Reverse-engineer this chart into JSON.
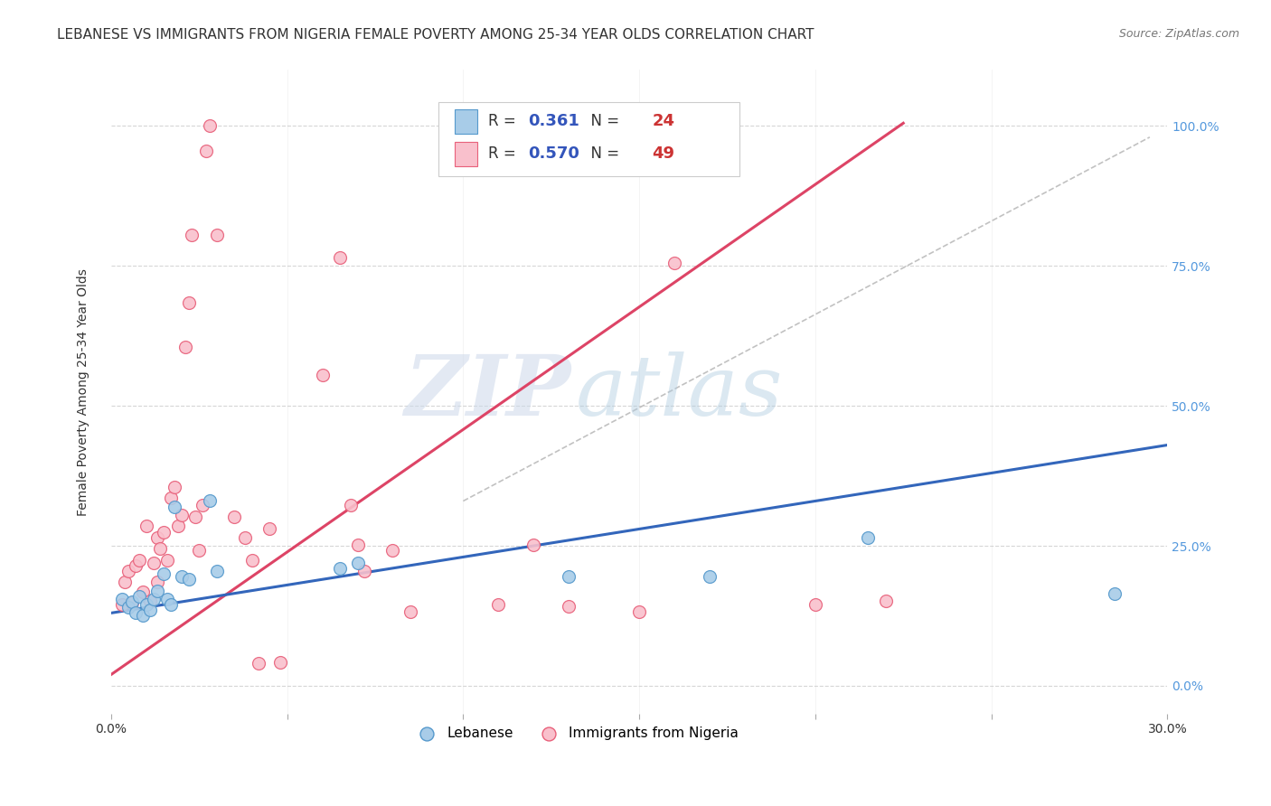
{
  "title": "LEBANESE VS IMMIGRANTS FROM NIGERIA FEMALE POVERTY AMONG 25-34 YEAR OLDS CORRELATION CHART",
  "source": "Source: ZipAtlas.com",
  "ylabel": "Female Poverty Among 25-34 Year Olds",
  "xlim": [
    0.0,
    0.3
  ],
  "ylim": [
    -0.05,
    1.1
  ],
  "xticks": [
    0.0,
    0.05,
    0.1,
    0.15,
    0.2,
    0.25,
    0.3
  ],
  "yticks": [
    0.0,
    0.25,
    0.5,
    0.75,
    1.0
  ],
  "ytick_labels": [
    "0.0%",
    "25.0%",
    "50.0%",
    "75.0%",
    "100.0%"
  ],
  "xtick_labels": [
    "0.0%",
    "",
    "",
    "",
    "",
    "",
    "30.0%"
  ],
  "watermark_zip": "ZIP",
  "watermark_atlas": "atlas",
  "legend_r_blue": "0.361",
  "legend_n_blue": "24",
  "legend_r_pink": "0.570",
  "legend_n_pink": "49",
  "legend_label_blue": "Lebanese",
  "legend_label_pink": "Immigrants from Nigeria",
  "blue_fill": "#a8cce8",
  "pink_fill": "#f9c0cc",
  "blue_edge": "#5599cc",
  "pink_edge": "#e8607a",
  "blue_line_color": "#3366bb",
  "pink_line_color": "#dd4466",
  "diag_line_color": "#bbbbbb",
  "blue_scatter": [
    [
      0.003,
      0.155
    ],
    [
      0.005,
      0.14
    ],
    [
      0.006,
      0.15
    ],
    [
      0.007,
      0.13
    ],
    [
      0.008,
      0.16
    ],
    [
      0.009,
      0.125
    ],
    [
      0.01,
      0.145
    ],
    [
      0.011,
      0.135
    ],
    [
      0.012,
      0.155
    ],
    [
      0.013,
      0.17
    ],
    [
      0.015,
      0.2
    ],
    [
      0.016,
      0.155
    ],
    [
      0.017,
      0.145
    ],
    [
      0.018,
      0.32
    ],
    [
      0.02,
      0.195
    ],
    [
      0.022,
      0.19
    ],
    [
      0.028,
      0.33
    ],
    [
      0.03,
      0.205
    ],
    [
      0.065,
      0.21
    ],
    [
      0.07,
      0.22
    ],
    [
      0.13,
      0.195
    ],
    [
      0.17,
      0.195
    ],
    [
      0.215,
      0.265
    ],
    [
      0.285,
      0.165
    ]
  ],
  "pink_scatter": [
    [
      0.003,
      0.145
    ],
    [
      0.004,
      0.185
    ],
    [
      0.005,
      0.205
    ],
    [
      0.006,
      0.148
    ],
    [
      0.007,
      0.215
    ],
    [
      0.008,
      0.225
    ],
    [
      0.009,
      0.168
    ],
    [
      0.01,
      0.285
    ],
    [
      0.011,
      0.152
    ],
    [
      0.012,
      0.22
    ],
    [
      0.013,
      0.185
    ],
    [
      0.013,
      0.265
    ],
    [
      0.014,
      0.245
    ],
    [
      0.015,
      0.275
    ],
    [
      0.016,
      0.225
    ],
    [
      0.017,
      0.335
    ],
    [
      0.018,
      0.355
    ],
    [
      0.019,
      0.285
    ],
    [
      0.02,
      0.305
    ],
    [
      0.021,
      0.605
    ],
    [
      0.022,
      0.685
    ],
    [
      0.023,
      0.805
    ],
    [
      0.024,
      0.302
    ],
    [
      0.025,
      0.242
    ],
    [
      0.026,
      0.322
    ],
    [
      0.027,
      0.955
    ],
    [
      0.028,
      1.0
    ],
    [
      0.03,
      0.805
    ],
    [
      0.035,
      0.302
    ],
    [
      0.038,
      0.265
    ],
    [
      0.04,
      0.225
    ],
    [
      0.042,
      0.04
    ],
    [
      0.045,
      0.28
    ],
    [
      0.048,
      0.042
    ],
    [
      0.06,
      0.555
    ],
    [
      0.065,
      0.765
    ],
    [
      0.068,
      0.322
    ],
    [
      0.07,
      0.252
    ],
    [
      0.072,
      0.205
    ],
    [
      0.08,
      0.242
    ],
    [
      0.085,
      0.132
    ],
    [
      0.1,
      0.955
    ],
    [
      0.11,
      0.145
    ],
    [
      0.12,
      0.252
    ],
    [
      0.13,
      0.142
    ],
    [
      0.15,
      0.132
    ],
    [
      0.16,
      0.755
    ],
    [
      0.2,
      0.145
    ],
    [
      0.22,
      0.152
    ]
  ],
  "blue_line_x": [
    0.0,
    0.3
  ],
  "blue_line_y": [
    0.13,
    0.43
  ],
  "pink_line_x": [
    0.0,
    0.225
  ],
  "pink_line_y": [
    0.02,
    1.005
  ],
  "diag_line_x": [
    0.1,
    0.295
  ],
  "diag_line_y": [
    0.33,
    0.98
  ],
  "background_color": "#ffffff",
  "grid_color": "#cccccc",
  "title_color": "#333333",
  "source_color": "#777777",
  "right_axis_color": "#5599dd",
  "left_axis_color": "#333333"
}
